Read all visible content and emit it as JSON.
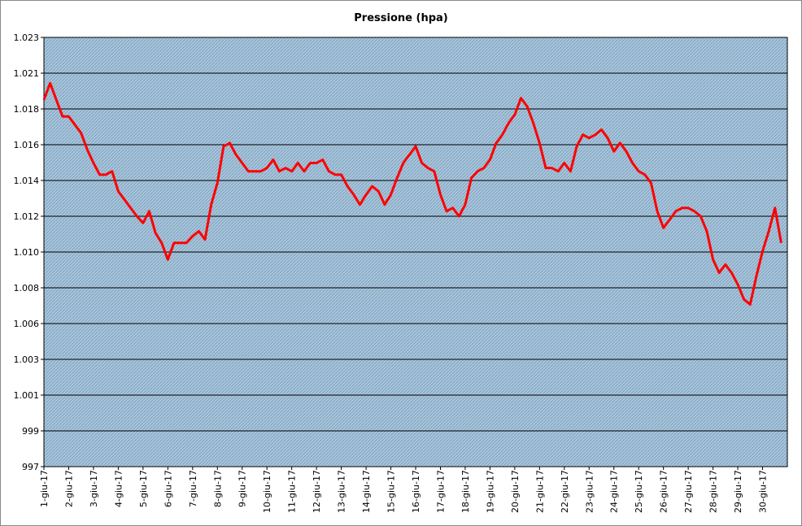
{
  "chart_data": {
    "type": "line",
    "title": "Pressione (hpa)",
    "categories": [
      "1-giu-17",
      null,
      null,
      null,
      "2-giu-17",
      null,
      null,
      null,
      "3-giu-17",
      null,
      null,
      null,
      "4-giu-17",
      null,
      null,
      null,
      "5-giu-17",
      null,
      null,
      null,
      "6-giu-17",
      null,
      null,
      null,
      "7-giu-17",
      null,
      null,
      null,
      "8-giu-17",
      null,
      null,
      null,
      "9-giu-17",
      null,
      null,
      null,
      "10-giu-17",
      null,
      null,
      null,
      "11-giu-17",
      null,
      null,
      null,
      "12-giu-17",
      null,
      null,
      null,
      "13-giu-17",
      null,
      null,
      null,
      "14-giu-17",
      null,
      null,
      null,
      "15-giu-17",
      null,
      null,
      null,
      "16-giu-17",
      null,
      null,
      null,
      "17-giu-17",
      null,
      null,
      null,
      "18-giu-17",
      null,
      null,
      null,
      "19-giu-17",
      null,
      null,
      null,
      "20-giu-17",
      null,
      null,
      null,
      "21-giu-17",
      null,
      null,
      null,
      "22-giu-17",
      null,
      null,
      null,
      "23-giu-17",
      null,
      null,
      null,
      "24-giu-17",
      null,
      null,
      null,
      "25-giu-17",
      null,
      null,
      null,
      "26-giu-17",
      null,
      null,
      null,
      "27-giu-17",
      null,
      null,
      null,
      "28-giu-17",
      null,
      null,
      null,
      "29-giu-17",
      null,
      null,
      null,
      "30-giu-17",
      null,
      null,
      null
    ],
    "values": [
      1019,
      1020,
      1019,
      1018,
      1018,
      1017.5,
      1017,
      1016,
      1015.2,
      1014.5,
      1014.5,
      1014.7,
      1013.5,
      1013,
      1012.5,
      1012,
      1011.6,
      1012.3,
      1011,
      1010.4,
      1009.4,
      1010.4,
      1010.4,
      1010.4,
      1010.8,
      1011.1,
      1010.6,
      1012.7,
      1014,
      1016.2,
      1016.4,
      1015.7,
      1015.2,
      1014.7,
      1014.7,
      1014.7,
      1014.9,
      1015.4,
      1014.7,
      1014.9,
      1014.7,
      1015.2,
      1014.7,
      1015.2,
      1015.2,
      1015.4,
      1014.7,
      1014.5,
      1014.5,
      1013.8,
      1013.3,
      1012.7,
      1013.3,
      1013.8,
      1013.5,
      1012.7,
      1013.3,
      1014.3,
      1015.2,
      1015.7,
      1016.2,
      1015.2,
      1014.9,
      1014.7,
      1013.3,
      1012.3,
      1012.5,
      1012,
      1012.7,
      1014.3,
      1014.7,
      1014.9,
      1015.4,
      1016.4,
      1016.9,
      1017.6,
      1018.1,
      1019.1,
      1018.6,
      1017.6,
      1016.4,
      1014.9,
      1014.9,
      1014.7,
      1015.2,
      1014.7,
      1016.2,
      1016.9,
      1016.7,
      1016.9,
      1017.2,
      1016.7,
      1015.9,
      1016.4,
      1015.9,
      1015.2,
      1014.7,
      1014.5,
      1014,
      1012.3,
      1011.3,
      1011.8,
      1012.3,
      1012.5,
      1012.5,
      1012.3,
      1012,
      1011.1,
      1009.4,
      1008.6,
      1009.1,
      1008.6,
      1007.9,
      1007,
      1006.7,
      1008.4,
      1009.9,
      1011.1,
      1012.5,
      1010.4
    ],
    "color": "#ff0000",
    "ylim": [
      996.95,
      1022.75
    ],
    "yticks": [
      {
        "value": 996.95,
        "label": "997"
      },
      {
        "value": 999.1,
        "label": "999"
      },
      {
        "value": 1001.25,
        "label": "1.001"
      },
      {
        "value": 1003.4,
        "label": "1.003"
      },
      {
        "value": 1005.55,
        "label": "1.006"
      },
      {
        "value": 1007.7,
        "label": "1.008"
      },
      {
        "value": 1009.85,
        "label": "1.010"
      },
      {
        "value": 1012,
        "label": "1.012"
      },
      {
        "value": 1014.15,
        "label": "1.014"
      },
      {
        "value": 1016.3,
        "label": "1.016"
      },
      {
        "value": 1018.45,
        "label": "1.018"
      },
      {
        "value": 1020.6,
        "label": "1.021"
      },
      {
        "value": 1022.75,
        "label": "1.023"
      }
    ],
    "grid": true
  }
}
